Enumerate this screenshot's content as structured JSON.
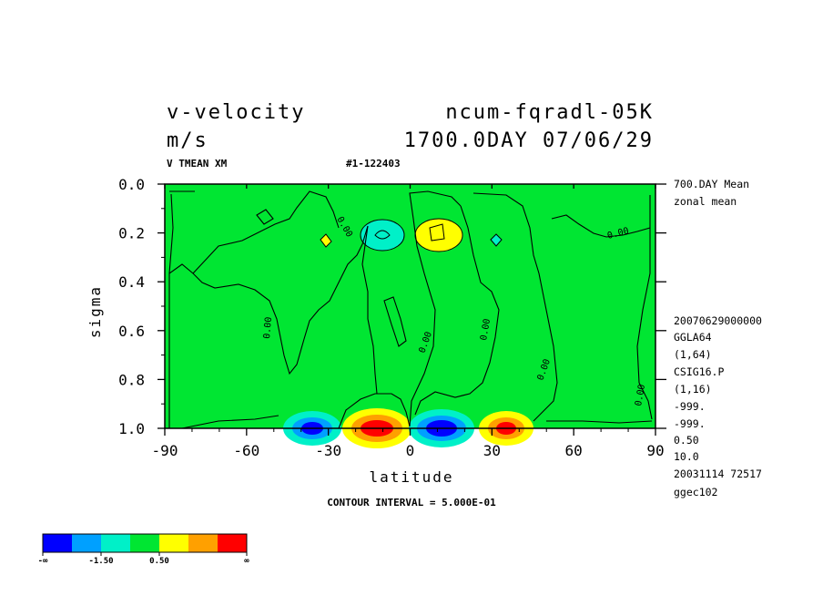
{
  "titles": {
    "left_line1": "v-velocity",
    "left_line2": "m/s",
    "right_line1": "ncum-fqradl-05K",
    "right_line2": "1700.0DAY 07/06/29",
    "var_desc": "V TMEAN XM",
    "run_id": "#1-122403",
    "contour_interval": "CONTOUR INTERVAL = 5.000E-01"
  },
  "side_info": [
    "700.DAY Mean",
    "zonal mean",
    "20070629000000",
    "GGLA64",
    "(1,64)",
    "CSIG16.P",
    "(1,16)",
    "-999.",
    "-999.",
    "0.50",
    "10.0",
    "20031114  72517",
    "ggec102"
  ],
  "colorbar": {
    "colors": [
      "#0000ff",
      "#00a0ff",
      "#00f0c8",
      "#00e632",
      "#ffff00",
      "#ffa000",
      "#ff0000"
    ],
    "labels": [
      "-∞",
      "-1.50",
      "0.50",
      "∞"
    ]
  },
  "contour_labels": [
    "0.00",
    "0.00",
    "0.00",
    "0.00",
    "0.00",
    "0.00",
    "0.00",
    "0.00"
  ],
  "colors": {
    "background_field": "#00e632"
  },
  "chart_data": {
    "type": "heatmap",
    "xlabel": "latitude",
    "ylabel": "sigma",
    "xlim": [
      -90,
      90
    ],
    "ylim": [
      1.0,
      0.0
    ],
    "x_ticks": [
      -90,
      -60,
      -30,
      0,
      30,
      60,
      90
    ],
    "x_tick_labels": [
      "-90",
      "-60",
      "-30",
      "0",
      "30",
      "60",
      "90"
    ],
    "y_ticks": [
      0.0,
      0.2,
      0.4,
      0.6,
      0.8,
      1.0
    ],
    "y_tick_labels": [
      "0.0",
      "0.2",
      "0.4",
      "0.6",
      "0.8",
      "1.0"
    ],
    "contour_interval": 0.5,
    "features": [
      {
        "name": "neg-cell-upper",
        "lat": -10,
        "sigma": 0.2,
        "value": -1.0
      },
      {
        "name": "pos-cell-upper",
        "lat": 10,
        "sigma": 0.2,
        "value": 1.0
      },
      {
        "name": "pos-cell-small",
        "lat": -36,
        "sigma": 0.23,
        "value": 0.5
      },
      {
        "name": "neg-cell-small",
        "lat": 33,
        "sigma": 0.23,
        "value": -0.5
      },
      {
        "name": "neg-surface-sh",
        "lat": -37,
        "sigma": 0.98,
        "value": -2.5
      },
      {
        "name": "pos-surface-sh",
        "lat": -11,
        "sigma": 0.98,
        "value": 3.0
      },
      {
        "name": "neg-surface-nh",
        "lat": 11,
        "sigma": 0.98,
        "value": -3.0
      },
      {
        "name": "pos-surface-nh",
        "lat": 36,
        "sigma": 0.98,
        "value": 2.5
      }
    ]
  }
}
